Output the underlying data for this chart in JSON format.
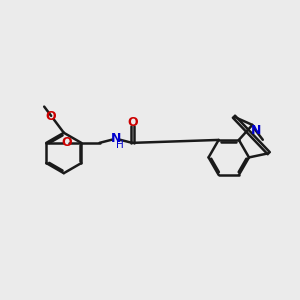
{
  "background_color": "#ebebeb",
  "bond_color": "#1a1a1a",
  "bond_width": 1.8,
  "o_color": "#cc0000",
  "n_color": "#0000cc",
  "figsize": [
    3.0,
    3.0
  ],
  "dpi": 100,
  "xlim": [
    0,
    10
  ],
  "ylim": [
    0,
    10
  ]
}
